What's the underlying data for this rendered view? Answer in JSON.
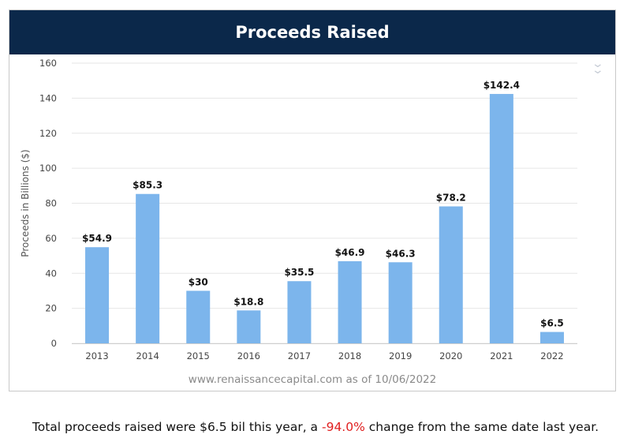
{
  "header": {
    "title": "Proceeds Raised"
  },
  "chart_data": {
    "type": "bar",
    "title": "Proceeds Raised",
    "categories": [
      "2013",
      "2014",
      "2015",
      "2016",
      "2017",
      "2018",
      "2019",
      "2020",
      "2021",
      "2022"
    ],
    "values": [
      54.9,
      85.3,
      30,
      18.8,
      35.5,
      46.9,
      46.3,
      78.2,
      142.4,
      6.5
    ],
    "value_labels": [
      "$54.9",
      "$85.3",
      "$30",
      "$18.8",
      "$35.5",
      "$46.9",
      "$46.3",
      "$78.2",
      "$142.4",
      "$6.5"
    ],
    "xlabel": "",
    "ylabel": "Proceeds in Billions ($)",
    "ylim": [
      0,
      160
    ],
    "yticks": [
      0,
      20,
      40,
      60,
      80,
      100,
      120,
      140,
      160
    ],
    "grid": true,
    "bar_color": "#7cb5ec",
    "grid_color": "#e6e6e6"
  },
  "source": {
    "site": "www.renaissancecapital.com",
    "as_of_prefix": "as of",
    "date": "10/06/2022"
  },
  "summary": {
    "prefix": "Total proceeds raised were $6.5 bil this year, a ",
    "change": "-94.0%",
    "suffix": " change from the same date last year."
  },
  "colors": {
    "header_bg": "#0b284a",
    "negative": "#e02020"
  },
  "icons": {
    "collapse": "double-chevron-down-icon"
  }
}
